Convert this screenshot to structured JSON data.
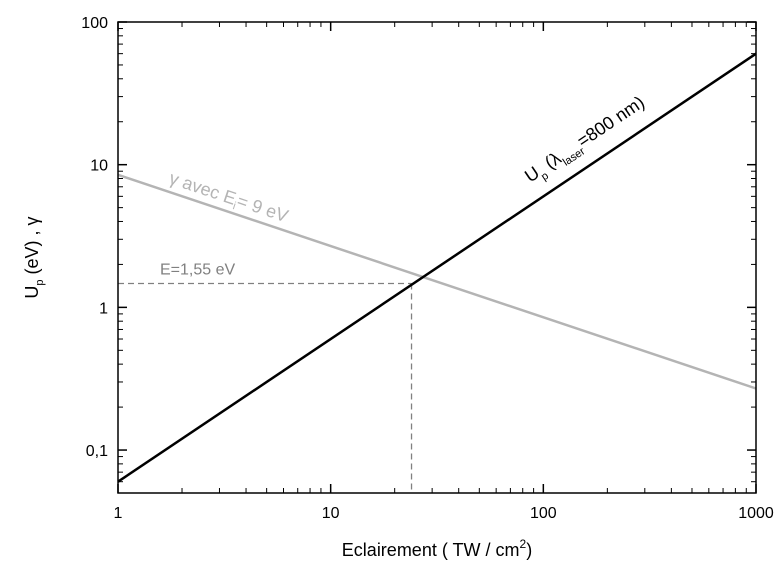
{
  "chart_data": {
    "type": "line",
    "xscale": "log",
    "yscale": "log",
    "xlim": [
      1,
      1000
    ],
    "ylim": [
      0.05,
      100
    ],
    "xticks": [
      1,
      10,
      100,
      1000
    ],
    "xtick_labels": [
      "1",
      "10",
      "100",
      "1000"
    ],
    "yticks": [
      0.1,
      1,
      10,
      100
    ],
    "ytick_labels": [
      "0,1",
      "1",
      "10",
      "100"
    ],
    "xlabel": {
      "main": "Eclairement ( TW / cm",
      "sup": "2",
      "end": ")"
    },
    "ylabel": {
      "main": "U",
      "sub": "p",
      "rest": " (eV) , γ"
    },
    "grid": false,
    "series": [
      {
        "key": "up",
        "color": "#000000",
        "x": [
          1,
          1000
        ],
        "y": [
          0.06,
          60
        ],
        "label": {
          "p1": "U",
          "s1": "p",
          "p2": " (λ",
          "s2": "laser",
          "p3": "=800 nm)"
        }
      },
      {
        "key": "gamma",
        "color": "#b4b4b4",
        "x": [
          1,
          1000
        ],
        "y": [
          8.5,
          0.27
        ],
        "label": {
          "p1": "γ avec E",
          "s1": "i",
          "p2": "= 9 eV"
        }
      }
    ],
    "annotation": {
      "text": "E=1,55 eV",
      "x": 24,
      "y": 1.47,
      "color": "#808080"
    }
  }
}
